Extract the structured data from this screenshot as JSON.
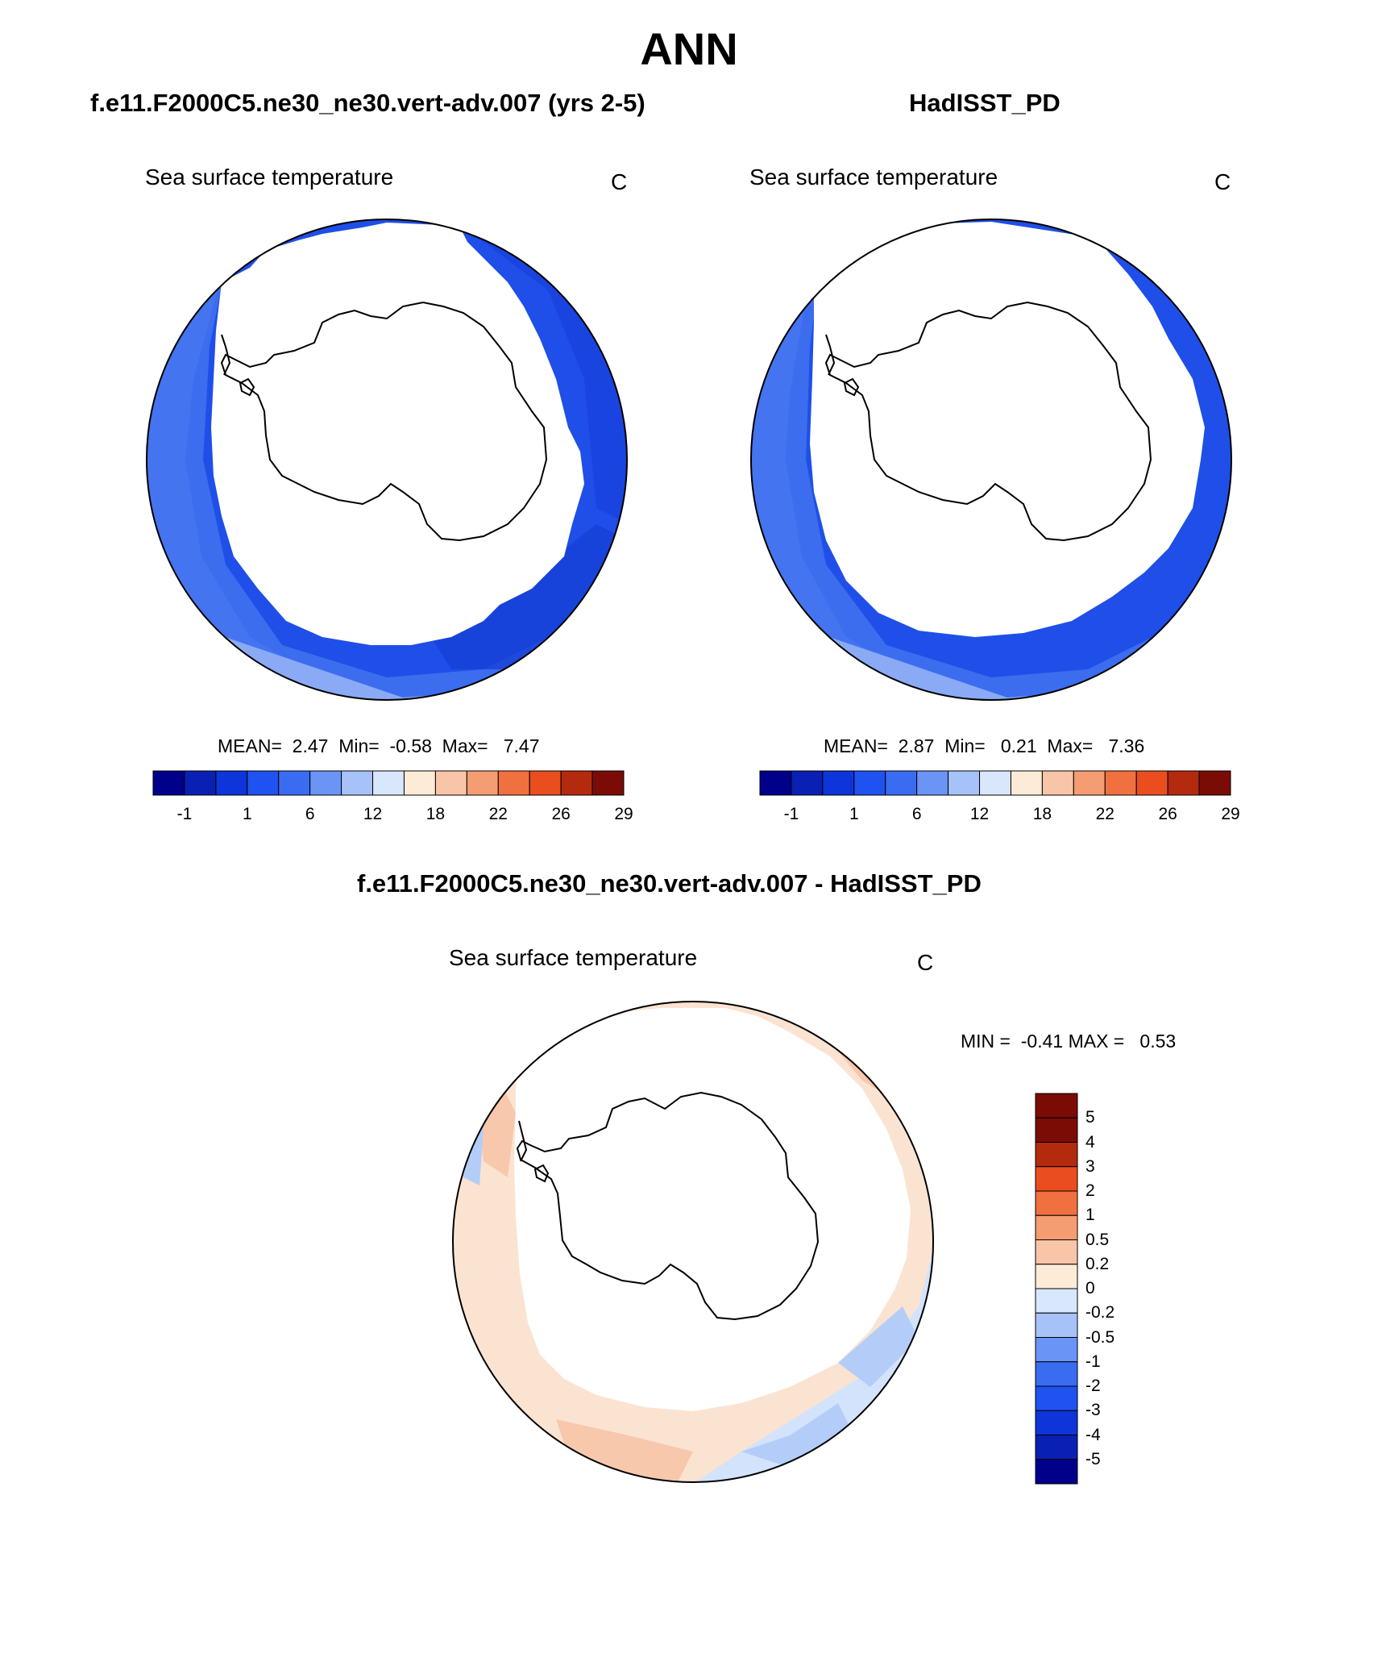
{
  "page_title": "ANN",
  "colors": {
    "sst_palette": [
      "#00008b",
      "#0a1fb4",
      "#0d35d9",
      "#1f52f0",
      "#3a6cf2",
      "#6a94f5",
      "#a6c2f8",
      "#d8e7fb",
      "#fdebd8",
      "#f9c5a8",
      "#f59d72",
      "#f1703f",
      "#ea4e1e",
      "#b32a0f",
      "#7a0c05"
    ],
    "diff_palette": [
      "#00008b",
      "#0a1fb4",
      "#0d35d9",
      "#1f52f0",
      "#3a6cf2",
      "#6a94f5",
      "#a6c2f8",
      "#d8e7fb",
      "#fdebd8",
      "#f9c5a8",
      "#f59d72",
      "#f1703f",
      "#ea4e1e",
      "#b32a0f",
      "#7a0c05"
    ],
    "ocean_dark": "#1f4fe8",
    "ocean_mid": "#3f70ee",
    "ocean_light": "#6f98f4",
    "diff_warm": "#fbe3d2",
    "diff_warm2": "#f8c8ac",
    "diff_cool": "#d3e3fb",
    "diff_cool2": "#b3cdf8"
  },
  "panels": [
    {
      "title": "f.e11.F2000C5.ne30_ne30.vert-adv.007 (yrs 2-5)",
      "variable": "Sea surface temperature",
      "units": "C",
      "stats": "MEAN=  2.47  Min=  -0.58  Max=   7.47",
      "colorbar_labels": [
        "-1",
        "1",
        "6",
        "12",
        "18",
        "22",
        "26",
        "29"
      ]
    },
    {
      "title": "HadISST_PD",
      "variable": "Sea surface temperature",
      "units": "C",
      "stats": "MEAN=  2.87  Min=   0.21  Max=   7.36",
      "colorbar_labels": [
        "-1",
        "1",
        "6",
        "12",
        "18",
        "22",
        "26",
        "29"
      ]
    }
  ],
  "diff_panel": {
    "title": "f.e11.F2000C5.ne30_ne30.vert-adv.007 - HadISST_PD",
    "variable": "Sea surface temperature",
    "units": "C",
    "stats": "MIN =  -0.41 MAX =   0.53",
    "colorbar_labels": [
      "5",
      "4",
      "3",
      "2",
      "1",
      "0.5",
      "0.2",
      "0",
      "-0.2",
      "-0.5",
      "-1",
      "-2",
      "-3",
      "-4",
      "-5"
    ]
  }
}
